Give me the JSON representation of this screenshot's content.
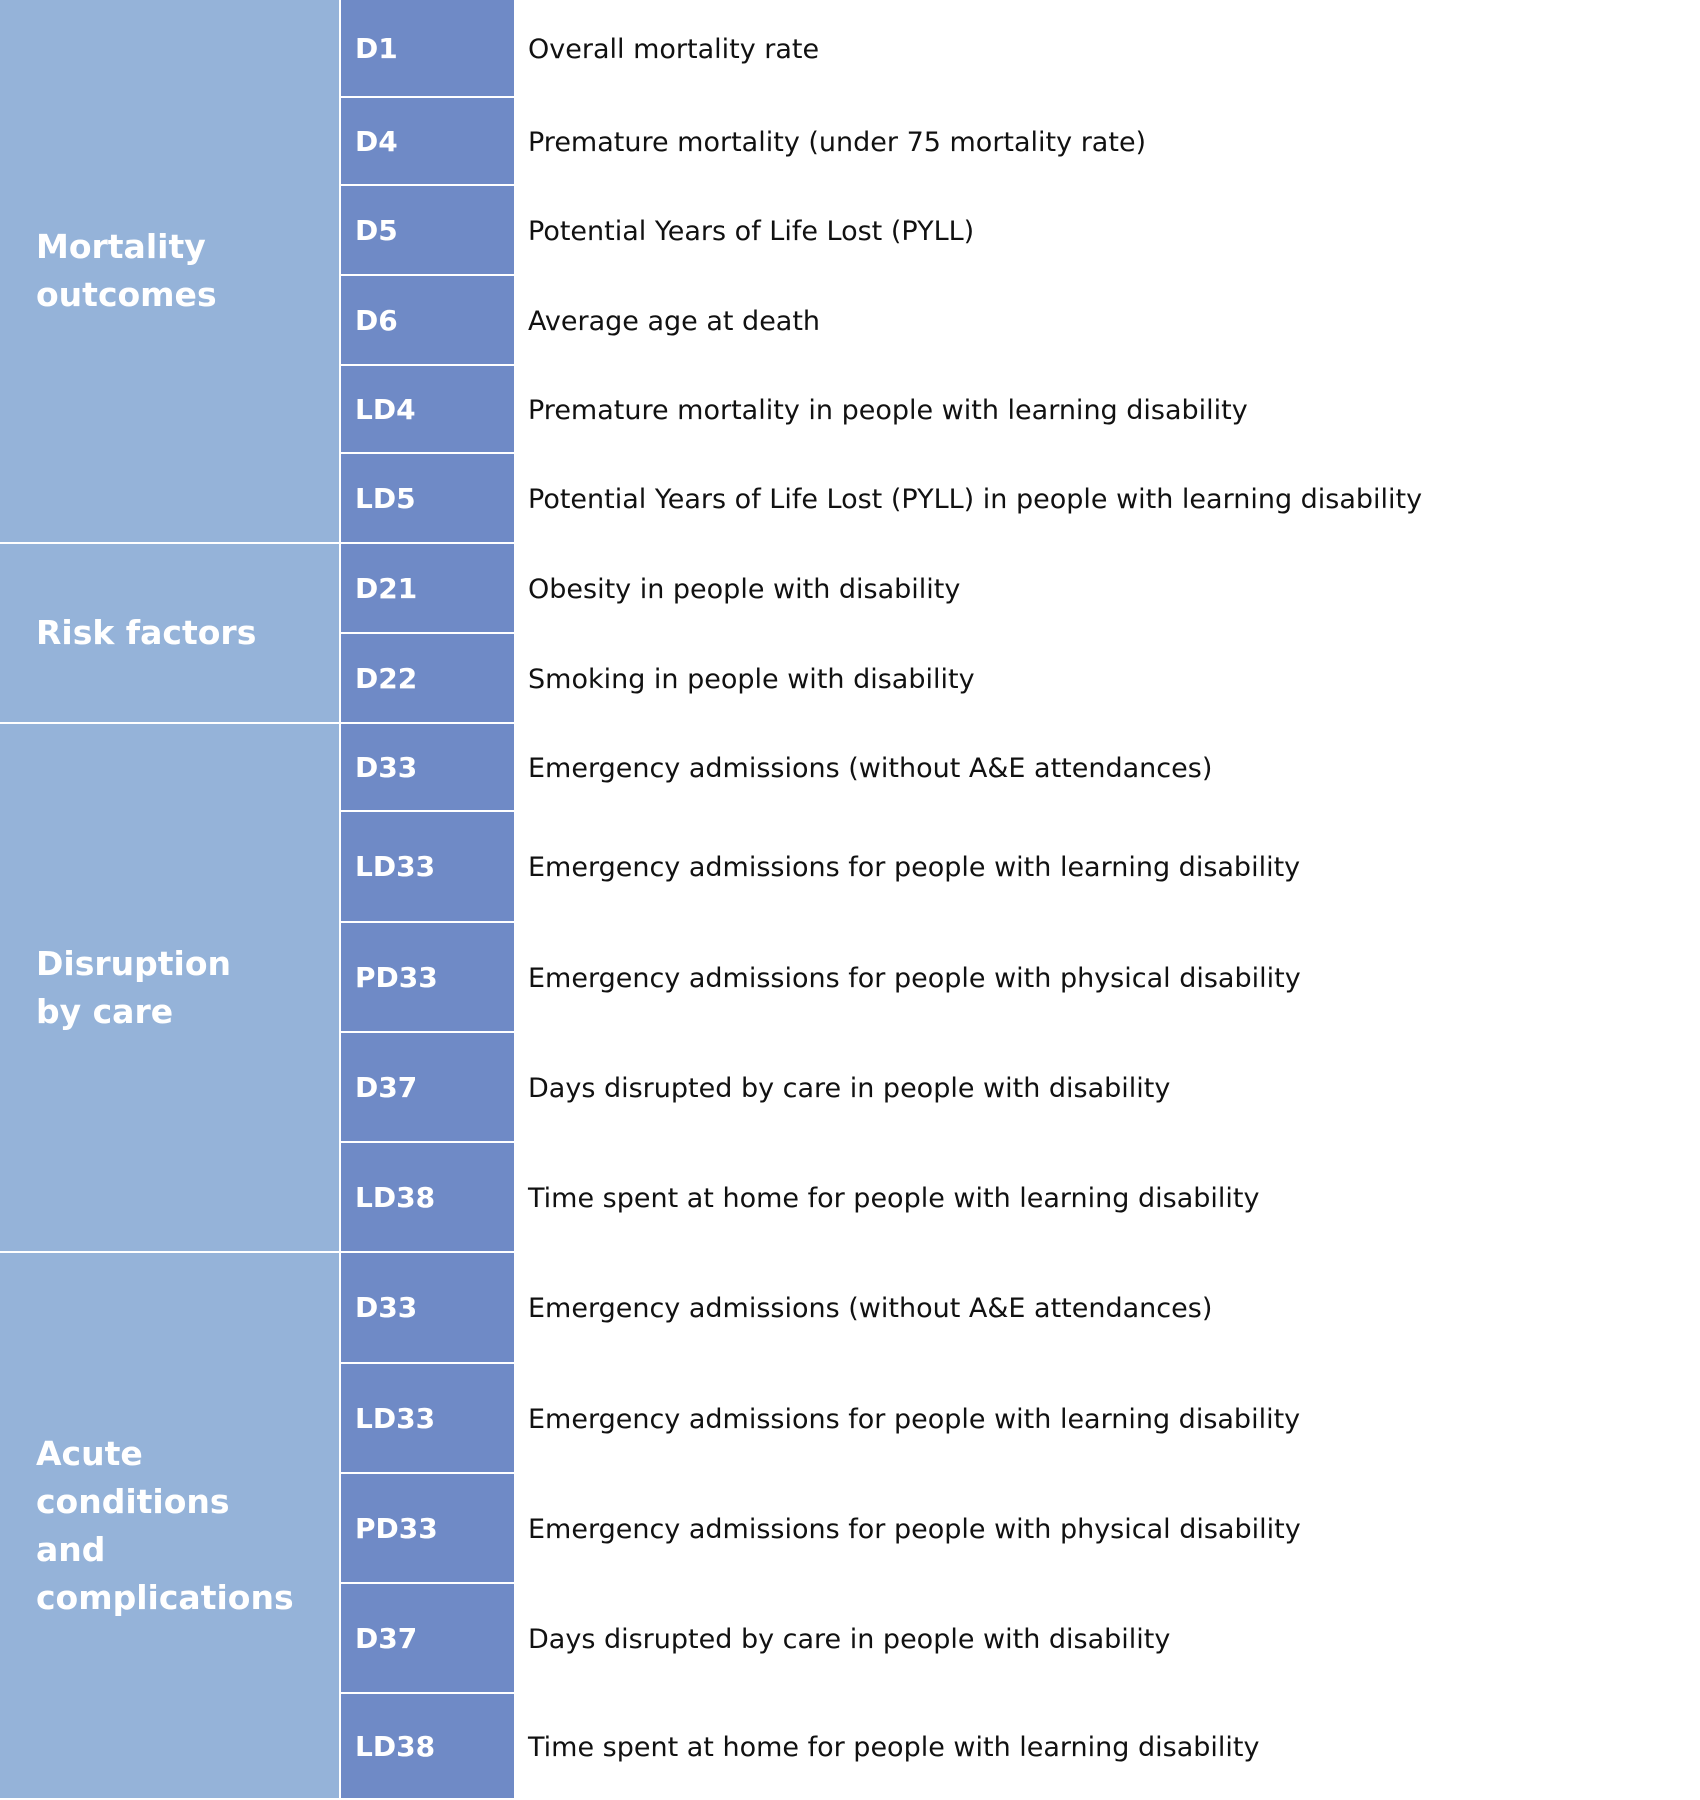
{
  "groups": [
    {
      "label": "Mortality outcomes",
      "rows": [
        {
          "code": "D1",
          "description": "Overall mortality rate"
        },
        {
          "code": "D4",
          "description": "Premature mortality (under 75 mortality rate)"
        },
        {
          "code": "D5",
          "description": "Potential Years of Life Lost (PYLL)"
        },
        {
          "code": "D6",
          "description": "Average age at death"
        },
        {
          "code": "LD4",
          "description": "Premature mortality in people with learning disability"
        },
        {
          "code": "LD5",
          "description": "Potential Years of Life Lost (PYLL) in people with learning disability"
        }
      ]
    },
    {
      "label": "Risk factors",
      "rows": [
        {
          "code": "D21",
          "description": "Obesity in people with disability"
        },
        {
          "code": "D22",
          "description": "Smoking in people with disability"
        }
      ]
    },
    {
      "label": "Disruption by care",
      "rows": [
        {
          "code": "D33",
          "description": "Emergency admissions (without A&E attendances)"
        },
        {
          "code": "LD33",
          "description": "Emergency admissions for people with learning disability"
        },
        {
          "code": "PD33",
          "description": "Emergency admissions for people with physical disability"
        },
        {
          "code": "D37",
          "description": "Days disrupted by care in people with disability"
        },
        {
          "code": "LD38",
          "description": "Time spent at home for people with learning disability"
        }
      ]
    },
    {
      "label": "Acute conditions and complications",
      "rows": [
        {
          "code": "D33",
          "description": "Emergency admissions (without A&E attendances)"
        },
        {
          "code": "LD33",
          "description": "Emergency admissions for people with learning disability"
        },
        {
          "code": "PD33",
          "description": "Emergency admissions for people with physical disability"
        },
        {
          "code": "D37",
          "description": "Days disrupted by care in people with disability"
        },
        {
          "code": "LD38",
          "description": "Time spent at home for people with learning disability"
        }
      ]
    }
  ]
}
